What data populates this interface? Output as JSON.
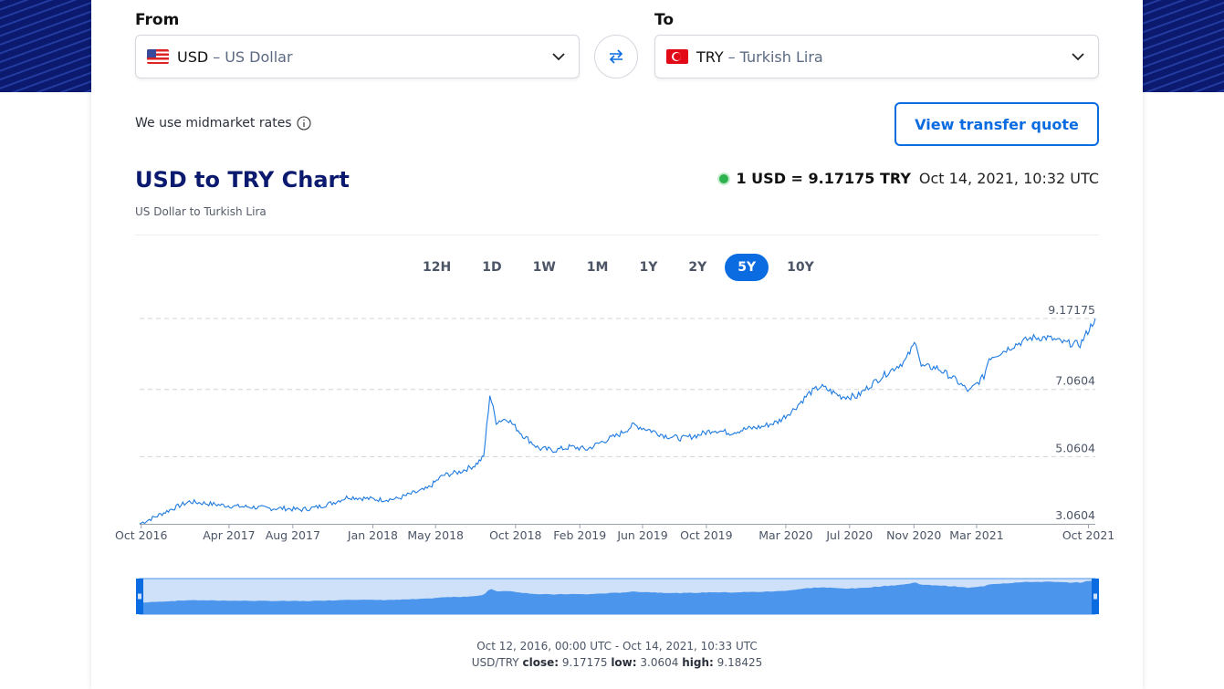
{
  "converter": {
    "from_label": "From",
    "to_label": "To",
    "from": {
      "code": "USD",
      "dash": "–",
      "name": "US Dollar",
      "flag_icon": "us-flag-icon"
    },
    "to": {
      "code": "TRY",
      "dash": "–",
      "name": "Turkish Lira",
      "flag_icon": "turkey-flag-icon"
    },
    "midmarket_text": "We use midmarket rates",
    "quote_button": "View transfer quote"
  },
  "chart_header": {
    "title": "USD to TRY Chart",
    "subtitle": "US Dollar to Turkish Lira",
    "rate_text": "1 USD = 9.17175 TRY",
    "rate_time": "Oct 14, 2021, 10:32 UTC"
  },
  "ranges": [
    "12H",
    "1D",
    "1W",
    "1M",
    "1Y",
    "2Y",
    "5Y",
    "10Y"
  ],
  "active_range": "5Y",
  "footer": {
    "period": "Oct 12, 2016, 00:00 UTC - Oct 14, 2021, 10:33 UTC",
    "pair": "USD/TRY",
    "close_label": "close:",
    "close": "9.17175",
    "low_label": "low:",
    "low": "3.0604",
    "high_label": "high:",
    "high": "9.18425"
  },
  "colors": {
    "brand": "#0b1a6e",
    "accent": "#0a6ce0",
    "line": "#1e7ae0",
    "navigator_fill": "#4c95ec",
    "navigator_bg": "#cfe1f8",
    "live": "#2bb24c"
  },
  "chart_data": {
    "type": "line",
    "title": "USD to TRY Chart",
    "series": [
      {
        "name": "USD/TRY",
        "x": [
          "2016-10-12",
          "2016-11-15",
          "2016-12-15",
          "2017-01-15",
          "2017-02-15",
          "2017-03-15",
          "2017-04-15",
          "2017-05-15",
          "2017-06-15",
          "2017-07-15",
          "2017-08-15",
          "2017-09-15",
          "2017-10-15",
          "2017-11-15",
          "2017-12-15",
          "2018-01-15",
          "2018-02-15",
          "2018-03-15",
          "2018-04-15",
          "2018-05-15",
          "2018-06-15",
          "2018-07-15",
          "2018-08-01",
          "2018-08-13",
          "2018-08-25",
          "2018-09-15",
          "2018-10-15",
          "2018-11-15",
          "2018-12-15",
          "2019-01-15",
          "2019-02-15",
          "2019-03-15",
          "2019-04-15",
          "2019-05-15",
          "2019-06-15",
          "2019-07-15",
          "2019-08-15",
          "2019-09-15",
          "2019-10-15",
          "2019-11-15",
          "2019-12-15",
          "2020-01-15",
          "2020-02-15",
          "2020-03-15",
          "2020-04-15",
          "2020-05-07",
          "2020-06-15",
          "2020-07-15",
          "2020-08-15",
          "2020-09-15",
          "2020-10-15",
          "2020-11-05",
          "2020-11-15",
          "2020-12-15",
          "2021-01-15",
          "2021-02-15",
          "2021-03-15",
          "2021-03-25",
          "2021-04-15",
          "2021-05-15",
          "2021-06-15",
          "2021-07-15",
          "2021-08-15",
          "2021-09-15",
          "2021-10-14"
        ],
        "values": [
          3.06,
          3.3,
          3.52,
          3.72,
          3.67,
          3.62,
          3.58,
          3.56,
          3.52,
          3.52,
          3.48,
          3.55,
          3.68,
          3.86,
          3.82,
          3.78,
          3.8,
          3.95,
          4.1,
          4.5,
          4.6,
          4.8,
          5.05,
          6.9,
          6.1,
          6.2,
          5.7,
          5.3,
          5.25,
          5.35,
          5.28,
          5.5,
          5.7,
          6.0,
          5.85,
          5.68,
          5.6,
          5.7,
          5.86,
          5.77,
          5.88,
          5.95,
          6.1,
          6.45,
          6.95,
          7.15,
          6.85,
          6.85,
          7.25,
          7.6,
          7.9,
          8.5,
          7.75,
          7.7,
          7.4,
          7.0,
          7.45,
          8.0,
          8.15,
          8.4,
          8.6,
          8.6,
          8.45,
          8.4,
          9.17175
        ]
      }
    ],
    "x_ticks": [
      "Oct 2016",
      "Apr 2017",
      "Aug 2017",
      "Jan 2018",
      "May 2018",
      "Oct 2018",
      "Feb 2019",
      "Jun 2019",
      "Oct 2019",
      "Mar 2020",
      "Jul 2020",
      "Nov 2020",
      "Mar 2021",
      "Oct 2021"
    ],
    "y_ticks": [
      "9.17175",
      "7.0604",
      "5.0604",
      "3.0604"
    ],
    "ylim": [
      3.0604,
      9.17175
    ],
    "grid": true,
    "navigator": true
  }
}
